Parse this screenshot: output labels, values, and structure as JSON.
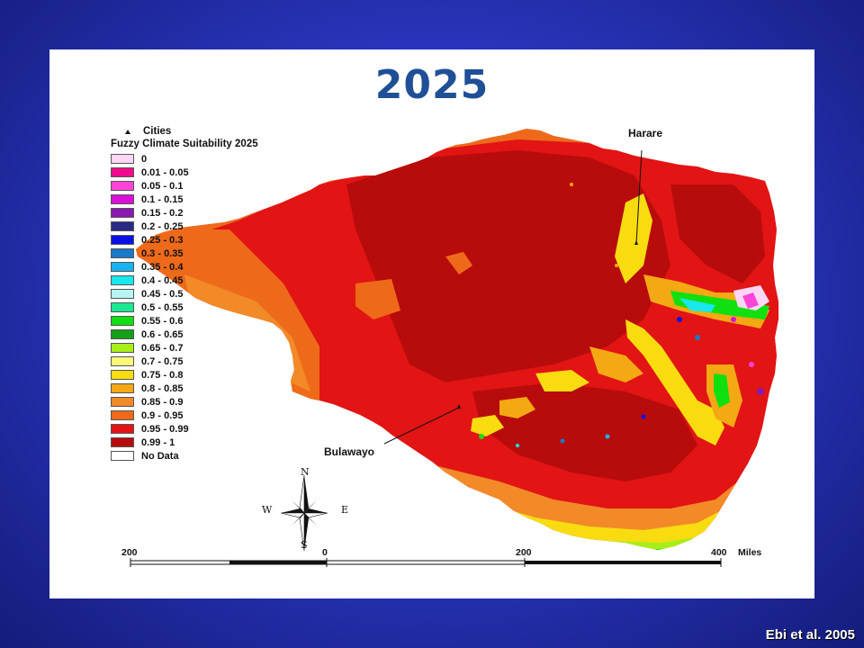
{
  "slide": {
    "title": "2025",
    "credit": "Ebi et al. 2005"
  },
  "legend": {
    "cities_label": "Cities",
    "title": "Fuzzy Climate Suitability 2025",
    "items": [
      {
        "label": "0",
        "color": "#ffd6f5"
      },
      {
        "label": "0.01 - 0.05",
        "color": "#f20a8c"
      },
      {
        "label": "0.05 - 0.1",
        "color": "#ff44d8"
      },
      {
        "label": "0.1 - 0.15",
        "color": "#d810d8"
      },
      {
        "label": "0.15 - 0.2",
        "color": "#8a1ab0"
      },
      {
        "label": "0.2 - 0.25",
        "color": "#2a2a86"
      },
      {
        "label": "0.25 - 0.3",
        "color": "#0a10e6"
      },
      {
        "label": "0.3 - 0.35",
        "color": "#1a78c8"
      },
      {
        "label": "0.35 - 0.4",
        "color": "#18b2f0"
      },
      {
        "label": "0.4 - 0.45",
        "color": "#18e8ee"
      },
      {
        "label": "0.45 - 0.5",
        "color": "#b8f4f0"
      },
      {
        "label": "0.5 - 0.55",
        "color": "#1ae892"
      },
      {
        "label": "0.55 - 0.6",
        "color": "#10e010"
      },
      {
        "label": "0.6 - 0.65",
        "color": "#14a018"
      },
      {
        "label": "0.65 - 0.7",
        "color": "#a8ee18"
      },
      {
        "label": "0.7 - 0.75",
        "color": "#f8f87a"
      },
      {
        "label": "0.75 - 0.8",
        "color": "#f8dc10"
      },
      {
        "label": "0.8 - 0.85",
        "color": "#f4a814"
      },
      {
        "label": "0.85 - 0.9",
        "color": "#f28a28"
      },
      {
        "label": "0.9 - 0.95",
        "color": "#ee6a1a"
      },
      {
        "label": "0.95 - 0.99",
        "color": "#e21414"
      },
      {
        "label": "0.99 - 1",
        "color": "#b80c0c"
      },
      {
        "label": "No Data",
        "color": "#ffffff"
      }
    ]
  },
  "map": {
    "cities": [
      {
        "name": "Harare"
      },
      {
        "name": "Bulawayo"
      }
    ],
    "compass": {
      "n": "N",
      "s": "S",
      "e": "E",
      "w": "W"
    },
    "scale": {
      "ticks": [
        "200",
        "0",
        "200",
        "400"
      ],
      "unit": "Miles"
    }
  }
}
